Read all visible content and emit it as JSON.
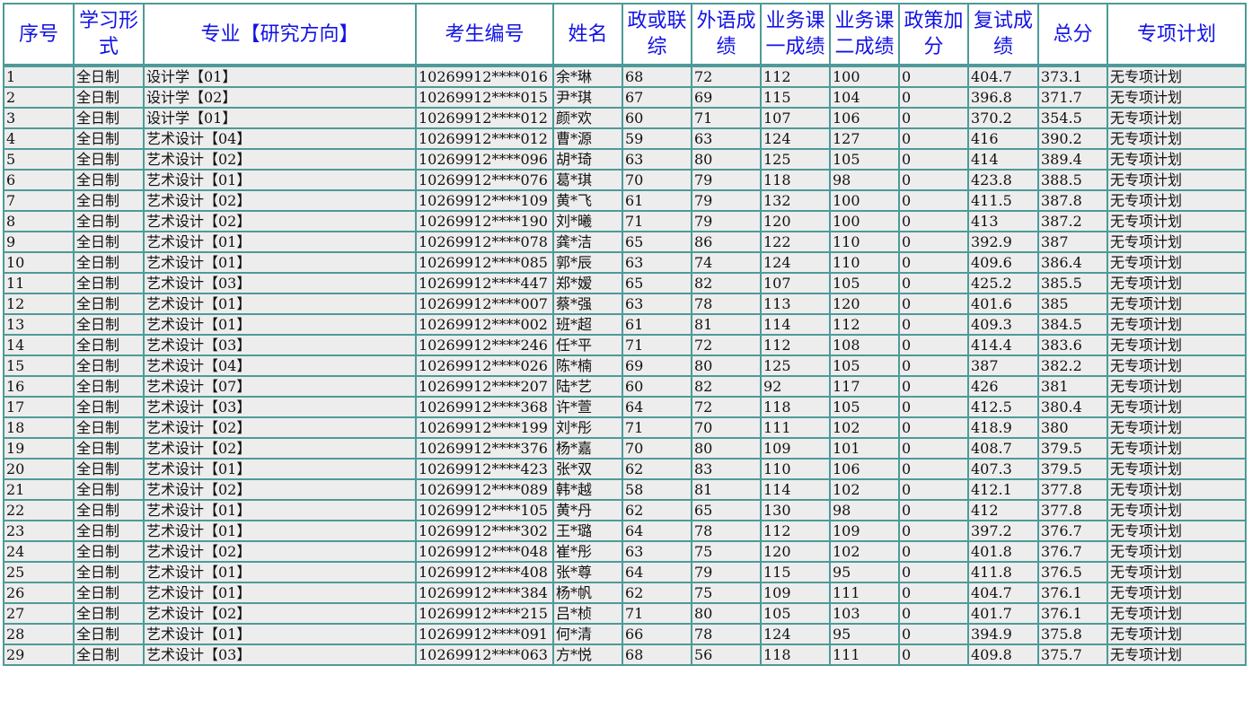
{
  "colors": {
    "header_text": "#1212e6",
    "border": "#4e9a98",
    "row_bg": "#ededed"
  },
  "headers": [
    "序号",
    "学习形式",
    "专业【研究方向】",
    "考生编号",
    "姓名",
    "政或联综",
    "外语成绩",
    "业务课一成绩",
    "业务课二成绩",
    "政策加分",
    "复试成绩",
    "总分",
    "专项计划"
  ],
  "rows": [
    [
      "1",
      "全日制",
      "设计学【01】",
      "10269912****016",
      "余*琳",
      "68",
      "72",
      "112",
      "100",
      "0",
      "404.7",
      "373.1",
      "无专项计划"
    ],
    [
      "2",
      "全日制",
      "设计学【02】",
      "10269912****015",
      "尹*琪",
      "67",
      "69",
      "115",
      "104",
      "0",
      "396.8",
      "371.7",
      "无专项计划"
    ],
    [
      "3",
      "全日制",
      "设计学【01】",
      "10269912****012",
      "颜*欢",
      "60",
      "71",
      "107",
      "106",
      "0",
      "370.2",
      "354.5",
      "无专项计划"
    ],
    [
      "4",
      "全日制",
      "艺术设计【04】",
      "10269912****012",
      "曹*源",
      "59",
      "63",
      "124",
      "127",
      "0",
      "416",
      "390.2",
      "无专项计划"
    ],
    [
      "5",
      "全日制",
      "艺术设计【02】",
      "10269912****096",
      "胡*琦",
      "63",
      "80",
      "125",
      "105",
      "0",
      "414",
      "389.4",
      "无专项计划"
    ],
    [
      "6",
      "全日制",
      "艺术设计【01】",
      "10269912****076",
      "葛*琪",
      "70",
      "79",
      "118",
      "98",
      "0",
      "423.8",
      "388.5",
      "无专项计划"
    ],
    [
      "7",
      "全日制",
      "艺术设计【02】",
      "10269912****109",
      "黄*飞",
      "61",
      "79",
      "132",
      "100",
      "0",
      "411.5",
      "387.8",
      "无专项计划"
    ],
    [
      "8",
      "全日制",
      "艺术设计【02】",
      "10269912****190",
      "刘*曦",
      "71",
      "79",
      "120",
      "100",
      "0",
      "413",
      "387.2",
      "无专项计划"
    ],
    [
      "9",
      "全日制",
      "艺术设计【01】",
      "10269912****078",
      "龚*洁",
      "65",
      "86",
      "122",
      "110",
      "0",
      "392.9",
      "387",
      "无专项计划"
    ],
    [
      "10",
      "全日制",
      "艺术设计【01】",
      "10269912****085",
      "郭*辰",
      "63",
      "74",
      "124",
      "110",
      "0",
      "409.6",
      "386.4",
      "无专项计划"
    ],
    [
      "11",
      "全日制",
      "艺术设计【03】",
      "10269912****447",
      "郑*嫒",
      "65",
      "82",
      "107",
      "105",
      "0",
      "425.2",
      "385.5",
      "无专项计划"
    ],
    [
      "12",
      "全日制",
      "艺术设计【01】",
      "10269912****007",
      "蔡*强",
      "63",
      "78",
      "113",
      "120",
      "0",
      "401.6",
      "385",
      "无专项计划"
    ],
    [
      "13",
      "全日制",
      "艺术设计【01】",
      "10269912****002",
      "班*超",
      "61",
      "81",
      "114",
      "112",
      "0",
      "409.3",
      "384.5",
      "无专项计划"
    ],
    [
      "14",
      "全日制",
      "艺术设计【03】",
      "10269912****246",
      "任*平",
      "71",
      "72",
      "112",
      "108",
      "0",
      "414.4",
      "383.6",
      "无专项计划"
    ],
    [
      "15",
      "全日制",
      "艺术设计【04】",
      "10269912****026",
      "陈*楠",
      "69",
      "80",
      "125",
      "105",
      "0",
      "387",
      "382.2",
      "无专项计划"
    ],
    [
      "16",
      "全日制",
      "艺术设计【07】",
      "10269912****207",
      "陆*艺",
      "60",
      "82",
      "92",
      "117",
      "0",
      "426",
      "381",
      "无专项计划"
    ],
    [
      "17",
      "全日制",
      "艺术设计【03】",
      "10269912****368",
      "许*萱",
      "64",
      "72",
      "118",
      "105",
      "0",
      "412.5",
      "380.4",
      "无专项计划"
    ],
    [
      "18",
      "全日制",
      "艺术设计【02】",
      "10269912****199",
      "刘*彤",
      "71",
      "70",
      "111",
      "102",
      "0",
      "418.9",
      "380",
      "无专项计划"
    ],
    [
      "19",
      "全日制",
      "艺术设计【02】",
      "10269912****376",
      "杨*嘉",
      "70",
      "80",
      "109",
      "101",
      "0",
      "408.7",
      "379.5",
      "无专项计划"
    ],
    [
      "20",
      "全日制",
      "艺术设计【01】",
      "10269912****423",
      "张*双",
      "62",
      "83",
      "110",
      "106",
      "0",
      "407.3",
      "379.5",
      "无专项计划"
    ],
    [
      "21",
      "全日制",
      "艺术设计【02】",
      "10269912****089",
      "韩*越",
      "58",
      "81",
      "114",
      "102",
      "0",
      "412.1",
      "377.8",
      "无专项计划"
    ],
    [
      "22",
      "全日制",
      "艺术设计【01】",
      "10269912****105",
      "黄*丹",
      "62",
      "65",
      "130",
      "98",
      "0",
      "412",
      "377.8",
      "无专项计划"
    ],
    [
      "23",
      "全日制",
      "艺术设计【01】",
      "10269912****302",
      "王*璐",
      "64",
      "78",
      "112",
      "109",
      "0",
      "397.2",
      "376.7",
      "无专项计划"
    ],
    [
      "24",
      "全日制",
      "艺术设计【02】",
      "10269912****048",
      "崔*彤",
      "63",
      "75",
      "120",
      "102",
      "0",
      "401.8",
      "376.7",
      "无专项计划"
    ],
    [
      "25",
      "全日制",
      "艺术设计【01】",
      "10269912****408",
      "张*尊",
      "64",
      "79",
      "115",
      "95",
      "0",
      "411.8",
      "376.5",
      "无专项计划"
    ],
    [
      "26",
      "全日制",
      "艺术设计【01】",
      "10269912****384",
      "杨*帆",
      "62",
      "75",
      "109",
      "111",
      "0",
      "404.7",
      "376.1",
      "无专项计划"
    ],
    [
      "27",
      "全日制",
      "艺术设计【02】",
      "10269912****215",
      "吕*桢",
      "71",
      "80",
      "105",
      "103",
      "0",
      "401.7",
      "376.1",
      "无专项计划"
    ],
    [
      "28",
      "全日制",
      "艺术设计【01】",
      "10269912****091",
      "何*清",
      "66",
      "78",
      "124",
      "95",
      "0",
      "394.9",
      "375.8",
      "无专项计划"
    ],
    [
      "29",
      "全日制",
      "艺术设计【03】",
      "10269912****063",
      "方*悦",
      "68",
      "56",
      "118",
      "111",
      "0",
      "409.8",
      "375.7",
      "无专项计划"
    ]
  ]
}
